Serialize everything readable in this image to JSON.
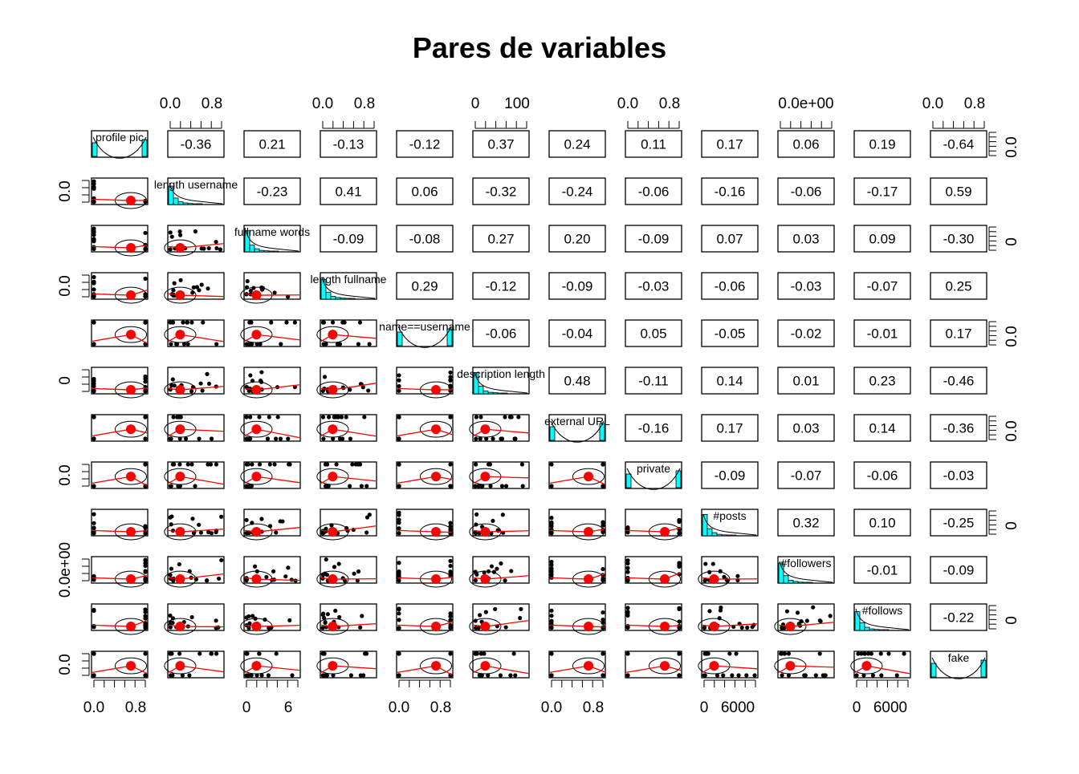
{
  "chart_data": {
    "type": "scatter",
    "title": "Pares de variables",
    "variables": [
      "profile pic",
      "nums/length username",
      "fullname words",
      "nums/length fullname",
      "name==username",
      "description length",
      "external URL",
      "private",
      "#posts",
      "#followers",
      "#follows",
      "fake"
    ],
    "diagonal_labels": [
      "profile pic",
      "length username",
      "fullname words",
      "length fullname",
      "name==username",
      "description length",
      "external URL",
      "private",
      "#posts",
      "#followers",
      "#follows",
      "fake"
    ],
    "correlations": {
      "rows": [
        [
          "",
          "-0.36",
          "0.21",
          "-0.13",
          "-0.12",
          "0.37",
          "0.24",
          "0.11",
          "0.17",
          "0.06",
          "0.19",
          "-0.64"
        ],
        [
          "",
          "",
          "-0.23",
          "0.41",
          "0.06",
          "-0.32",
          "-0.24",
          "-0.06",
          "-0.16",
          "-0.06",
          "-0.17",
          "0.59"
        ],
        [
          "",
          "",
          "",
          "-0.09",
          "-0.08",
          "0.27",
          "0.20",
          "-0.09",
          "0.07",
          "0.03",
          "0.09",
          "-0.30"
        ],
        [
          "",
          "",
          "",
          "",
          "0.29",
          "-0.12",
          "-0.09",
          "-0.03",
          "-0.06",
          "-0.03",
          "-0.07",
          "0.25"
        ],
        [
          "",
          "",
          "",
          "",
          "",
          "-0.06",
          "-0.04",
          "0.05",
          "-0.05",
          "-0.02",
          "-0.01",
          "0.17"
        ],
        [
          "",
          "",
          "",
          "",
          "",
          "",
          "0.48",
          "-0.11",
          "0.14",
          "0.01",
          "0.23",
          "-0.46"
        ],
        [
          "",
          "",
          "",
          "",
          "",
          "",
          "",
          "-0.16",
          "0.17",
          "0.03",
          "0.14",
          "-0.36"
        ],
        [
          "",
          "",
          "",
          "",
          "",
          "",
          "",
          "",
          "-0.09",
          "-0.07",
          "-0.06",
          "-0.03"
        ],
        [
          "",
          "",
          "",
          "",
          "",
          "",
          "",
          "",
          "",
          "0.32",
          "0.10",
          "-0.25"
        ],
        [
          "",
          "",
          "",
          "",
          "",
          "",
          "",
          "",
          "",
          "",
          "-0.01",
          "-0.09"
        ],
        [
          "",
          "",
          "",
          "",
          "",
          "",
          "",
          "",
          "",
          "",
          "",
          "-0.22"
        ],
        [
          "",
          "",
          "",
          "",
          "",
          "",
          "",
          "",
          "",
          "",
          "",
          ""
        ]
      ]
    },
    "top_axis_labels": [
      {
        "col": 1,
        "labels": [
          "0.0",
          "0.8"
        ]
      },
      {
        "col": 3,
        "labels": [
          "0.0",
          "0.8"
        ]
      },
      {
        "col": 5,
        "labels": [
          "0",
          "100"
        ]
      },
      {
        "col": 7,
        "labels": [
          "0.0",
          "0.8"
        ]
      },
      {
        "col": 9,
        "labels": [
          "0.0e+00"
        ]
      },
      {
        "col": 11,
        "labels": [
          "0.0",
          "0.8"
        ]
      }
    ],
    "bottom_axis_labels": [
      {
        "col": 0,
        "labels": [
          "0.0",
          "0.8"
        ]
      },
      {
        "col": 2,
        "labels": [
          "0",
          "6"
        ]
      },
      {
        "col": 4,
        "labels": [
          "0.0",
          "0.8"
        ]
      },
      {
        "col": 6,
        "labels": [
          "0.0",
          "0.8"
        ]
      },
      {
        "col": 8,
        "labels": [
          "0",
          "6000"
        ]
      },
      {
        "col": 10,
        "labels": [
          "0",
          "6000"
        ]
      }
    ],
    "left_axis_labels": [
      {
        "row": 1,
        "labels": [
          "0.0"
        ]
      },
      {
        "row": 3,
        "labels": [
          "0.0"
        ]
      },
      {
        "row": 5,
        "labels": [
          "0"
        ]
      },
      {
        "row": 7,
        "labels": [
          "0.0"
        ]
      },
      {
        "row": 9,
        "labels": [
          "0.0e+00"
        ]
      },
      {
        "row": 11,
        "labels": [
          "0.0"
        ]
      }
    ],
    "right_axis_labels": [
      {
        "row": 0,
        "labels": [
          "0.0"
        ]
      },
      {
        "row": 2,
        "labels": [
          "0"
        ]
      },
      {
        "row": 4,
        "labels": [
          "0.0"
        ]
      },
      {
        "row": 6,
        "labels": [
          "0.0"
        ]
      },
      {
        "row": 8,
        "labels": [
          "0"
        ]
      },
      {
        "row": 10,
        "labels": [
          "0"
        ]
      }
    ],
    "colors": {
      "points": "#000000",
      "smooth_line": "#ff0000",
      "mean_point": "#ff0000",
      "histogram_fill": "#00ffff",
      "panel_border": "#000000"
    }
  }
}
